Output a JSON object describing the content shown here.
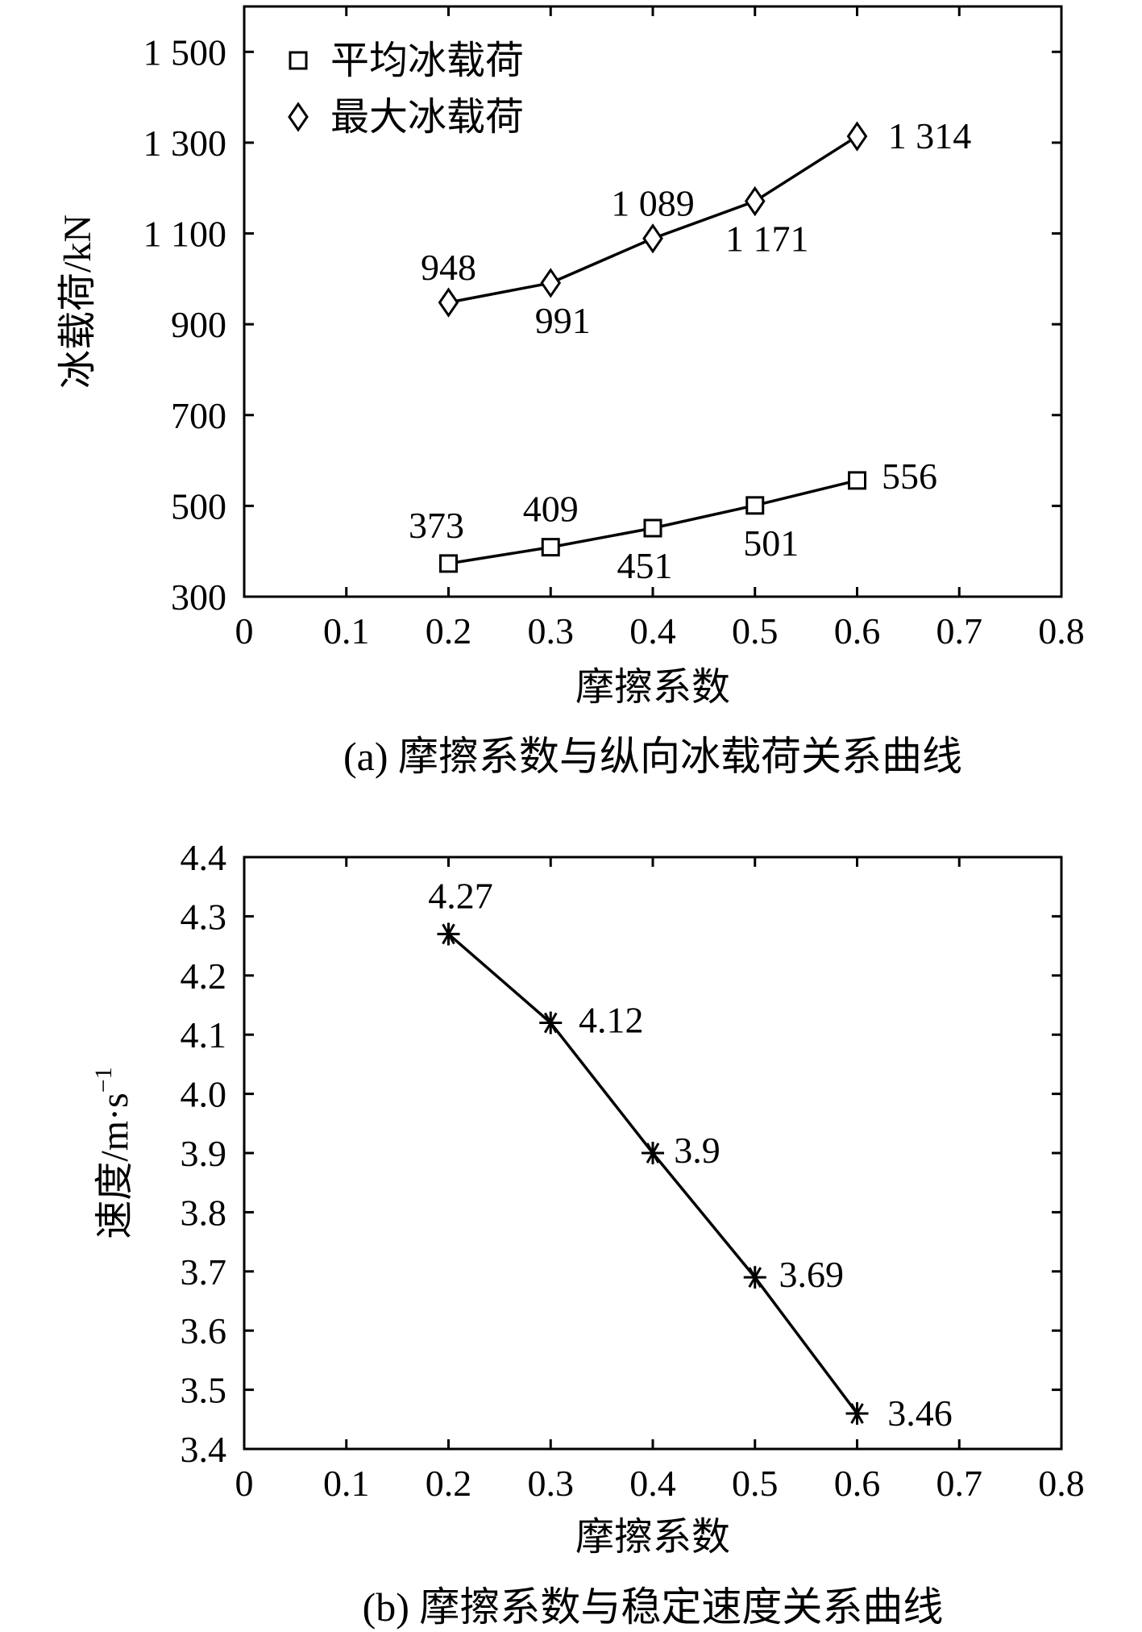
{
  "chart_data": [
    {
      "type": "line",
      "title": "(a) 摩擦系数与纵向冰载荷关系曲线",
      "xlabel": "摩擦系数",
      "ylabel": "冰载荷/kN",
      "xlim": [
        0,
        0.8
      ],
      "ylim": [
        300,
        1600
      ],
      "x_ticks": [
        0,
        0.1,
        0.2,
        0.3,
        0.4,
        0.5,
        0.6,
        0.7,
        0.8
      ],
      "x_tick_labels": [
        "0",
        "0.1",
        "0.2",
        "0.3",
        "0.4",
        "0.5",
        "0.6",
        "0.7",
        "0.8"
      ],
      "y_ticks": [
        300,
        500,
        700,
        900,
        1100,
        1300,
        1500
      ],
      "y_tick_labels": [
        "300",
        "500",
        "700",
        "900",
        "1 100",
        "1 300",
        "1 500"
      ],
      "grid": false,
      "legend_position": "top-left",
      "x": [
        0.2,
        0.3,
        0.4,
        0.5,
        0.6
      ],
      "series": [
        {
          "name": "平均冰载荷",
          "marker": "square",
          "values": [
            373,
            409,
            451,
            501,
            556
          ],
          "labels": [
            "373",
            "409",
            "451",
            "501",
            "556"
          ]
        },
        {
          "name": "最大冰载荷",
          "marker": "diamond",
          "values": [
            948,
            991,
            1089,
            1171,
            1314
          ],
          "labels": [
            "948",
            "991",
            "1 089",
            "1 171",
            "1 314"
          ]
        }
      ]
    },
    {
      "type": "line",
      "title": "(b) 摩擦系数与稳定速度关系曲线",
      "xlabel": "摩擦系数",
      "ylabel": "速度/m·s",
      "ylabel_superscript": "−1",
      "xlim": [
        0,
        0.8
      ],
      "ylim": [
        3.4,
        4.4
      ],
      "x_ticks": [
        0,
        0.1,
        0.2,
        0.3,
        0.4,
        0.5,
        0.6,
        0.7,
        0.8
      ],
      "x_tick_labels": [
        "0",
        "0.1",
        "0.2",
        "0.3",
        "0.4",
        "0.5",
        "0.6",
        "0.7",
        "0.8"
      ],
      "y_ticks": [
        3.4,
        3.5,
        3.6,
        3.7,
        3.8,
        3.9,
        4.0,
        4.1,
        4.2,
        4.3,
        4.4
      ],
      "y_tick_labels": [
        "3.4",
        "3.5",
        "3.6",
        "3.7",
        "3.8",
        "3.9",
        "4.0",
        "4.1",
        "4.2",
        "4.3",
        "4.4"
      ],
      "grid": false,
      "x": [
        0.2,
        0.3,
        0.4,
        0.5,
        0.6
      ],
      "series": [
        {
          "marker": "asterisk",
          "values": [
            4.27,
            4.12,
            3.9,
            3.69,
            3.46
          ],
          "labels": [
            "4.27",
            "4.12",
            "3.9",
            "3.69",
            "3.46"
          ]
        }
      ]
    }
  ]
}
